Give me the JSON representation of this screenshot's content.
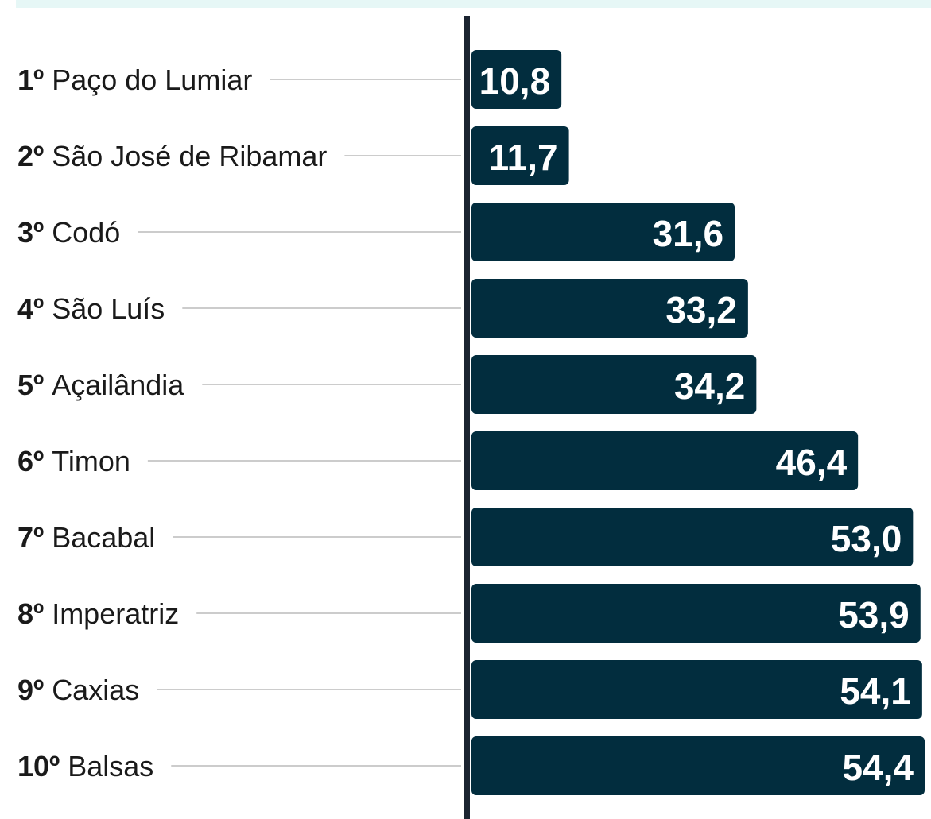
{
  "chart_data": {
    "type": "bar",
    "orientation": "horizontal",
    "ranks": [
      "1º",
      "2º",
      "3º",
      "4º",
      "5º",
      "6º",
      "7º",
      "8º",
      "9º",
      "10º"
    ],
    "categories": [
      "Paço do Lumiar",
      "São José de Ribamar",
      "Codó",
      "São Luís",
      "Açailândia",
      "Timon",
      "Bacabal",
      "Imperatriz",
      "Caxias",
      "Balsas"
    ],
    "values": [
      10.8,
      11.7,
      31.6,
      33.2,
      34.2,
      46.4,
      53.0,
      53.9,
      54.1,
      54.4
    ],
    "value_labels": [
      "10,8",
      "11,7",
      "31,6",
      "33,2",
      "34,2",
      "46,4",
      "53,0",
      "53,9",
      "54,1",
      "54,4"
    ],
    "color": "#022d3e"
  }
}
